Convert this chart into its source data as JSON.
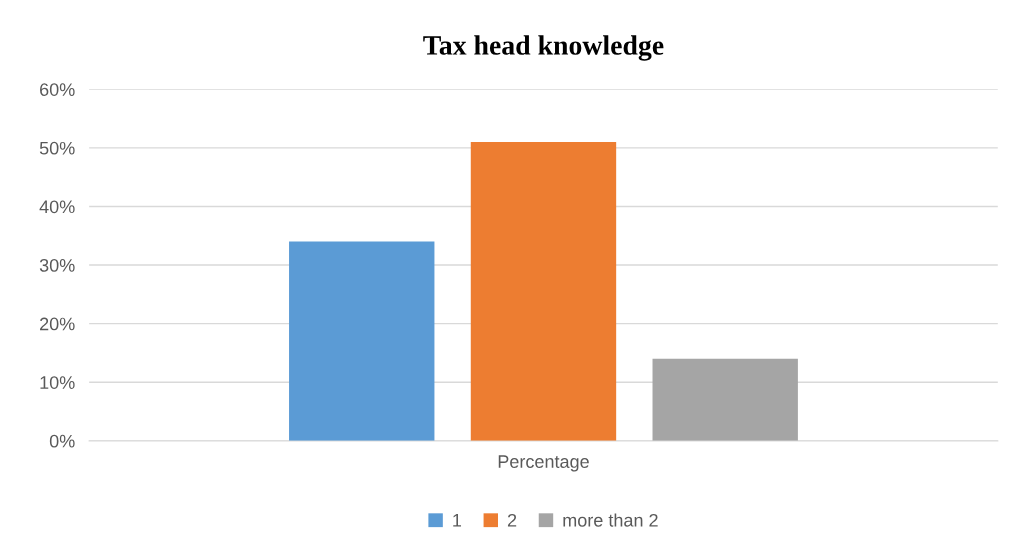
{
  "chart_data": {
    "type": "bar",
    "title": "Tax head knowledge",
    "categories": [
      "Percentage"
    ],
    "series": [
      {
        "name": "1",
        "color": "#5b9bd5",
        "values": [
          34
        ]
      },
      {
        "name": "2",
        "color": "#ed7d31",
        "values": [
          51
        ]
      },
      {
        "name": "more than 2",
        "color": "#a5a5a5",
        "values": [
          14
        ]
      }
    ],
    "ylim": [
      0,
      60
    ],
    "yticks": [
      {
        "value": 0,
        "label": "0%"
      },
      {
        "value": 10,
        "label": "10%"
      },
      {
        "value": 20,
        "label": "20%"
      },
      {
        "value": 30,
        "label": "30%"
      },
      {
        "value": 40,
        "label": "40%"
      },
      {
        "value": 50,
        "label": "50%"
      },
      {
        "value": 60,
        "label": "60%"
      }
    ],
    "grid": "y",
    "legend": "bottom"
  }
}
